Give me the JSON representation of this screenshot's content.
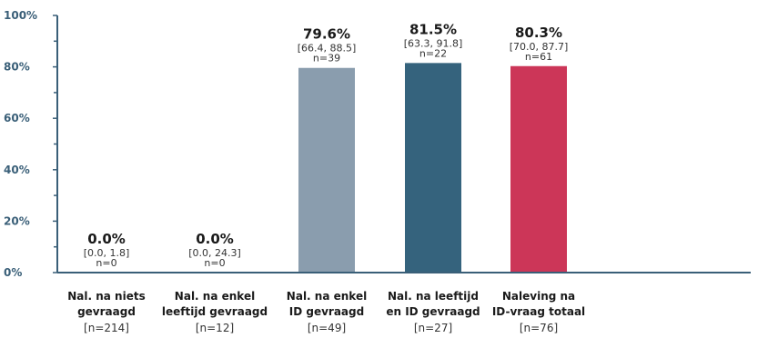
{
  "chart_data": {
    "type": "bar",
    "ylim": [
      0,
      100
    ],
    "yticks": [
      "0%",
      "20%",
      "40%",
      "60%",
      "80%",
      "100%"
    ],
    "ytick_values": [
      0,
      20,
      40,
      60,
      80,
      100
    ],
    "colors": {
      "axis": "#3a5f78",
      "bars": [
        "#8a9dae",
        "#8a9dae",
        "#8a9dae",
        "#35637d",
        "#cc3658"
      ]
    },
    "bars": [
      {
        "value": 0.0,
        "label": "0.0%",
        "ci": "[0.0, 1.8]",
        "n": "n=0",
        "category_lines": [
          "Nal. na niets",
          "gevraagd"
        ],
        "category_n": "[n=214]"
      },
      {
        "value": 0.0,
        "label": "0.0%",
        "ci": "[0.0, 24.3]",
        "n": "n=0",
        "category_lines": [
          "Nal. na enkel",
          "leeftijd gevraagd"
        ],
        "category_n": "[n=12]"
      },
      {
        "value": 79.6,
        "label": "79.6%",
        "ci": "[66.4, 88.5]",
        "n": "n=39",
        "category_lines": [
          "Nal. na enkel",
          "ID gevraagd"
        ],
        "category_n": "[n=49]"
      },
      {
        "value": 81.5,
        "label": "81.5%",
        "ci": "[63.3, 91.8]",
        "n": "n=22",
        "category_lines": [
          "Nal. na leeftijd",
          "en ID gevraagd"
        ],
        "category_n": "[n=27]"
      },
      {
        "value": 80.3,
        "label": "80.3%",
        "ci": "[70.0, 87.7]",
        "n": "n=61",
        "category_lines": [
          "Naleving na",
          "ID-vraag totaal"
        ],
        "category_n": "[n=76]"
      }
    ]
  }
}
